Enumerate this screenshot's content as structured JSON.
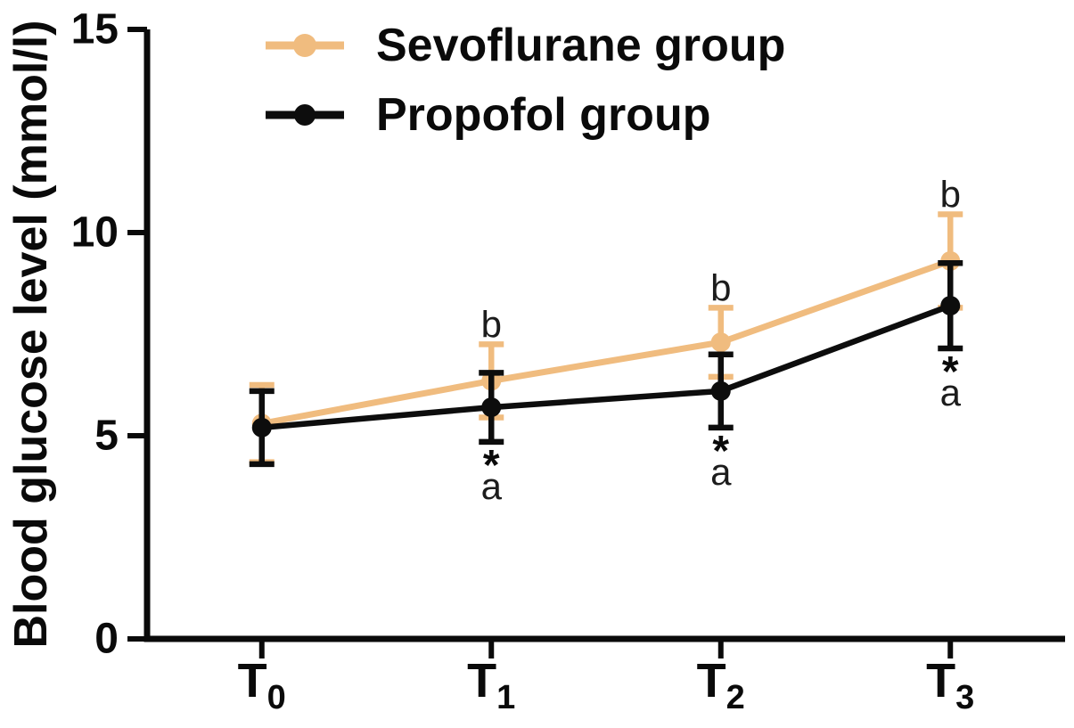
{
  "figure": {
    "background": "#ffffff",
    "axis_color": "#0a0a0a",
    "annotation_color": "#1c1c1c"
  },
  "chart_data": {
    "type": "line",
    "title": "",
    "xlabel": "",
    "ylabel": "Blood glucose level (mmol/l)",
    "ylim": [
      0,
      15
    ],
    "yticks": [
      0,
      5,
      10,
      15
    ],
    "categories": [
      "T0",
      "T1",
      "T2",
      "T3"
    ],
    "grid": false,
    "legend_position": "top-left",
    "series": [
      {
        "name": "Sevoflurane group",
        "color": "#F0BC7F",
        "marker": "circle",
        "values": [
          5.3,
          6.35,
          7.3,
          9.3
        ],
        "errors": [
          0.95,
          0.9,
          0.85,
          1.15
        ],
        "annotations_above": [
          [],
          [
            "b"
          ],
          [
            "b"
          ],
          [
            "b"
          ]
        ],
        "annotations_below": [
          [],
          [],
          [],
          []
        ]
      },
      {
        "name": "Propofol group",
        "color": "#0d0d0d",
        "marker": "circle",
        "values": [
          5.2,
          5.7,
          6.1,
          8.2
        ],
        "errors": [
          0.9,
          0.85,
          0.9,
          1.05
        ],
        "annotations_above": [
          [],
          [],
          [],
          []
        ],
        "annotations_below": [
          [],
          [
            "*",
            "a"
          ],
          [
            "*",
            "a"
          ],
          [
            "*",
            "a"
          ]
        ]
      }
    ]
  }
}
